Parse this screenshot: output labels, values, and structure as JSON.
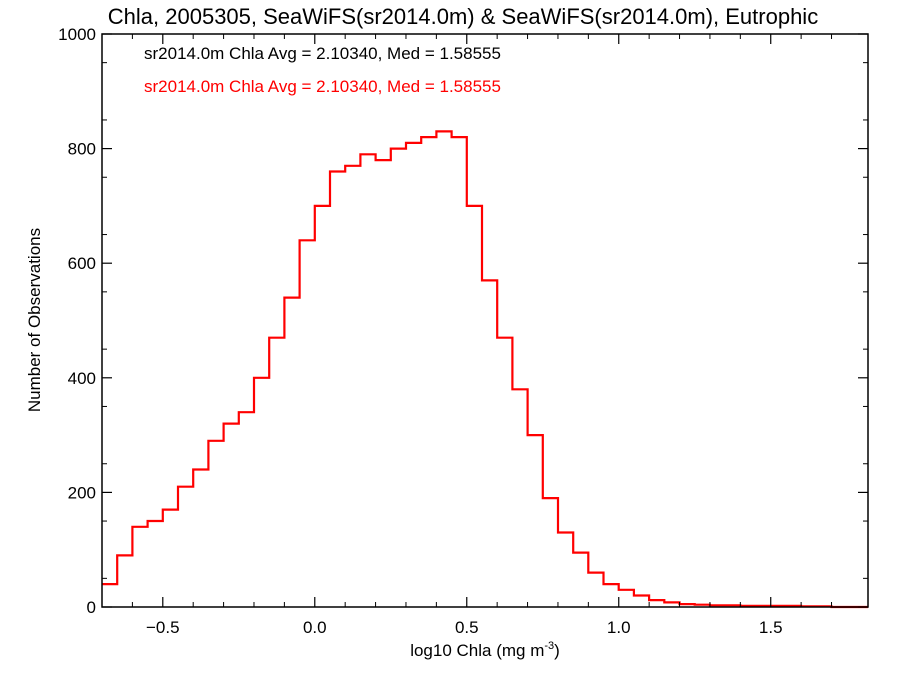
{
  "chart_data": {
    "type": "line",
    "title": "Chla, 2005305, SeaWiFS(sr2014.0m) & SeaWiFS(sr2014.0m), Eutrophic",
    "xlabel": "log10 Chla (mg m",
    "xlabel_sup": "-3",
    "xlabel_end": ")",
    "ylabel": "Number of Observations",
    "xlim": [
      -0.7,
      1.82
    ],
    "ylim": [
      0,
      1000
    ],
    "xticks": [
      -0.5,
      0.0,
      0.5,
      1.0,
      1.5
    ],
    "xtick_labels": [
      "−0.5",
      "0.0",
      "0.5",
      "1.0",
      "1.5"
    ],
    "yticks": [
      0,
      200,
      400,
      600,
      800,
      1000
    ],
    "ytick_labels": [
      "0",
      "200",
      "400",
      "600",
      "800",
      "1000"
    ],
    "annotations": [
      {
        "text": "sr2014.0m Chla Avg = 2.10340, Med = 1.58555",
        "color": "#000000"
      },
      {
        "text": "sr2014.0m Chla Avg = 2.10340, Med = 1.58555",
        "color": "#ff0000"
      }
    ],
    "series": [
      {
        "color": "#ff0000",
        "step": "histogram",
        "x": [
          -0.7,
          -0.65,
          -0.6,
          -0.55,
          -0.5,
          -0.45,
          -0.4,
          -0.35,
          -0.3,
          -0.25,
          -0.2,
          -0.15,
          -0.1,
          -0.05,
          0.0,
          0.05,
          0.1,
          0.15,
          0.2,
          0.25,
          0.3,
          0.35,
          0.4,
          0.45,
          0.5,
          0.55,
          0.6,
          0.65,
          0.7,
          0.75,
          0.8,
          0.85,
          0.9,
          0.95,
          1.0,
          1.05,
          1.1,
          1.15,
          1.2,
          1.25,
          1.3,
          1.4,
          1.5,
          1.6,
          1.7,
          1.82
        ],
        "y": [
          40,
          90,
          140,
          150,
          170,
          210,
          240,
          290,
          320,
          340,
          400,
          470,
          540,
          640,
          700,
          760,
          770,
          790,
          780,
          800,
          810,
          820,
          830,
          820,
          700,
          570,
          470,
          380,
          300,
          190,
          130,
          95,
          60,
          40,
          30,
          20,
          12,
          8,
          5,
          4,
          3,
          2,
          2,
          1,
          0,
          0
        ]
      }
    ]
  }
}
